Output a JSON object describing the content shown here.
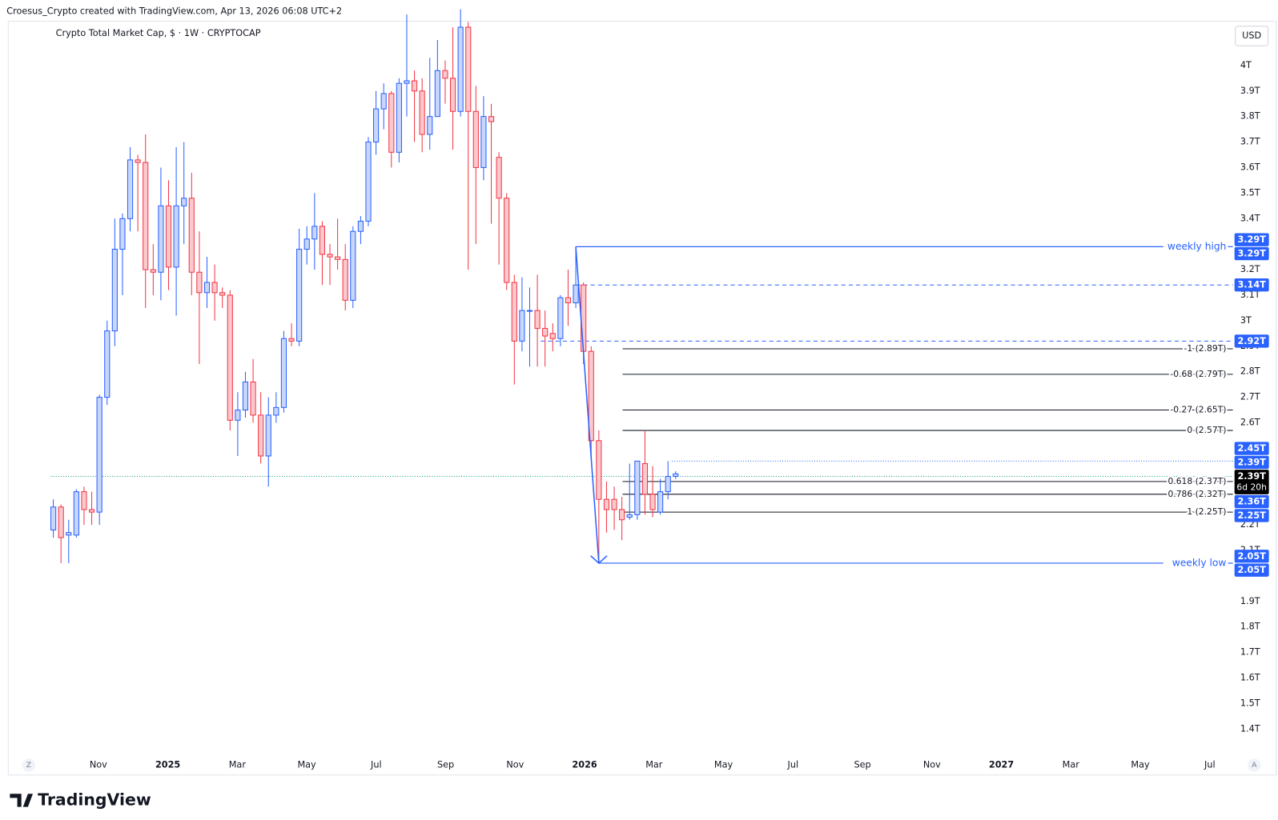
{
  "header": {
    "credit": "Croesus_Crypto created with TradingView.com, Apr 13, 2026 06:08 UTC+2",
    "currency": "USD",
    "footer_logo": "TradingView",
    "corner_left": "Z",
    "corner_right": "A"
  },
  "chart_data": {
    "type": "candlestick",
    "title": "Crypto Total Market Cap, $ · 1W · CRYPTOCAP",
    "up_color": "#2962ff",
    "down_color": "#f23645",
    "open": [
      2.18,
      2.27,
      2.16,
      2.16,
      2.33,
      2.26,
      2.25,
      2.7,
      2.96,
      3.28,
      3.4,
      3.63,
      3.62,
      3.2,
      3.19,
      3.45,
      3.21,
      3.45,
      3.48,
      3.19,
      3.11,
      3.15,
      3.11,
      3.1,
      2.61,
      2.65,
      2.76,
      2.63,
      2.47,
      2.63,
      2.66,
      2.93,
      2.92,
      3.28,
      3.32,
      3.37,
      3.26,
      3.25,
      3.24,
      3.08,
      3.35,
      3.39,
      3.7,
      3.83,
      3.89,
      3.66,
      3.93,
      3.94,
      3.9,
      3.73,
      3.8,
      3.98,
      3.95,
      3.82,
      4.15,
      3.82,
      3.6,
      3.8,
      3.64,
      3.48,
      3.15,
      2.92,
      3.04,
      3.04,
      2.97,
      2.95,
      2.93,
      3.09,
      3.07,
      3.14,
      2.88,
      2.53,
      2.3,
      2.3,
      2.26,
      2.23,
      2.24,
      2.44,
      2.32,
      2.25,
      2.33,
      2.39
    ],
    "high": [
      2.3,
      2.28,
      2.22,
      2.34,
      2.35,
      2.33,
      2.71,
      3.0,
      3.4,
      3.42,
      3.68,
      3.65,
      3.73,
      3.3,
      3.6,
      3.55,
      3.68,
      3.7,
      3.58,
      3.35,
      3.25,
      3.22,
      3.13,
      3.12,
      2.72,
      2.8,
      2.85,
      2.72,
      2.7,
      2.72,
      2.96,
      2.99,
      3.36,
      3.37,
      3.5,
      3.39,
      3.3,
      3.4,
      3.3,
      3.37,
      3.41,
      3.72,
      3.9,
      3.93,
      3.9,
      3.95,
      4.2,
      3.98,
      3.95,
      4.03,
      4.1,
      4.02,
      4.15,
      4.22,
      4.17,
      3.92,
      3.88,
      3.85,
      3.66,
      3.5,
      3.18,
      3.17,
      3.13,
      3.18,
      3.04,
      2.99,
      3.1,
      3.2,
      3.29,
      3.15,
      2.9,
      2.57,
      2.37,
      2.35,
      2.31,
      2.44,
      2.45,
      2.57,
      2.43,
      2.38,
      2.45,
      2.41
    ],
    "low": [
      2.15,
      2.05,
      2.05,
      2.15,
      2.2,
      2.2,
      2.2,
      2.67,
      2.9,
      3.1,
      3.35,
      3.35,
      3.05,
      3.1,
      3.08,
      3.12,
      3.02,
      3.3,
      3.1,
      2.83,
      3.05,
      3.0,
      3.05,
      2.57,
      2.47,
      2.62,
      2.6,
      2.44,
      2.35,
      2.6,
      2.64,
      2.9,
      2.9,
      3.22,
      3.2,
      3.14,
      3.14,
      3.2,
      3.04,
      3.05,
      3.3,
      3.37,
      3.65,
      3.75,
      3.6,
      3.62,
      3.8,
      3.7,
      3.66,
      3.67,
      3.8,
      3.85,
      3.67,
      3.8,
      3.2,
      3.3,
      3.55,
      3.38,
      3.22,
      3.12,
      2.75,
      2.88,
      2.82,
      2.82,
      2.82,
      2.88,
      2.9,
      2.98,
      3.05,
      2.83,
      2.46,
      2.05,
      2.17,
      2.18,
      2.14,
      2.22,
      2.22,
      2.24,
      2.23,
      2.24,
      2.3,
      2.38
    ],
    "close": [
      2.27,
      2.15,
      2.17,
      2.33,
      2.26,
      2.25,
      2.7,
      2.96,
      3.28,
      3.4,
      3.63,
      3.62,
      3.2,
      3.19,
      3.45,
      3.21,
      3.45,
      3.48,
      3.19,
      3.11,
      3.15,
      3.11,
      3.1,
      2.61,
      2.65,
      2.76,
      2.63,
      2.47,
      2.63,
      2.66,
      2.93,
      2.92,
      3.28,
      3.32,
      3.37,
      3.26,
      3.25,
      3.24,
      3.08,
      3.35,
      3.39,
      3.7,
      3.83,
      3.89,
      3.66,
      3.93,
      3.94,
      3.9,
      3.73,
      3.8,
      3.98,
      3.95,
      3.82,
      4.15,
      3.82,
      3.6,
      3.8,
      3.78,
      3.48,
      3.15,
      2.92,
      3.04,
      3.04,
      2.97,
      2.94,
      2.93,
      3.09,
      3.07,
      3.14,
      2.88,
      2.53,
      2.3,
      2.26,
      2.26,
      2.22,
      2.24,
      2.45,
      2.32,
      2.26,
      2.33,
      2.39,
      2.4
    ],
    "xticks": [
      "Nov",
      "2025",
      "Mar",
      "May",
      "Jul",
      "Sep",
      "Nov",
      "2026",
      "Mar",
      "May",
      "Jul",
      "Sep",
      "Nov",
      "2027",
      "Mar",
      "May",
      "Jul"
    ],
    "ylim": [
      1.22,
      4.17
    ],
    "yticks": [
      {
        "value": 1.4,
        "label": "1.4T"
      },
      {
        "value": 1.5,
        "label": "1.5T"
      },
      {
        "value": 1.6,
        "label": "1.6T"
      },
      {
        "value": 1.7,
        "label": "1.7T"
      },
      {
        "value": 1.8,
        "label": "1.8T"
      },
      {
        "value": 1.9,
        "label": "1.9T"
      },
      {
        "value": 2.1,
        "label": "2.1T"
      },
      {
        "value": 2.2,
        "label": "2.2T"
      },
      {
        "value": 2.6,
        "label": "2.6T"
      },
      {
        "value": 2.7,
        "label": "2.7T"
      },
      {
        "value": 2.8,
        "label": "2.8T"
      },
      {
        "value": 2.9,
        "label": "2.9T"
      },
      {
        "value": 3,
        "label": "3T"
      },
      {
        "value": 3.1,
        "label": "3.1T"
      },
      {
        "value": 3.2,
        "label": "3.2T"
      },
      {
        "value": 3.4,
        "label": "3.4T"
      },
      {
        "value": 3.5,
        "label": "3.5T"
      },
      {
        "value": 3.6,
        "label": "3.6T"
      },
      {
        "value": 3.7,
        "label": "3.7T"
      },
      {
        "value": 3.8,
        "label": "3.8T"
      },
      {
        "value": 3.9,
        "label": "3.9T"
      },
      {
        "value": 4,
        "label": "4T"
      }
    ],
    "fib_levels": [
      {
        "label": "-1 (2.89T)",
        "value": 2.89
      },
      {
        "label": "-0.68 (2.79T)",
        "value": 2.79
      },
      {
        "label": "-0.27 (2.65T)",
        "value": 2.65
      },
      {
        "label": "0 (2.57T)",
        "value": 2.57
      },
      {
        "label": "0.618 (2.37T)",
        "value": 2.37
      },
      {
        "label": "0.786 (2.32T)",
        "value": 2.32
      },
      {
        "label": "1 (2.25T)",
        "value": 2.25
      }
    ],
    "annotations": [
      {
        "label": "weekly high",
        "value": 3.29
      },
      {
        "label": "weekly low",
        "value": 2.05
      }
    ],
    "price_badges": [
      {
        "label": "3.29T",
        "value": 3.29,
        "color": "#2962ff"
      },
      {
        "label": "3.29T",
        "value": 3.29,
        "color": "#2962ff"
      },
      {
        "label": "3.14T",
        "value": 3.14,
        "color": "#2962ff",
        "line": "dashed"
      },
      {
        "label": "2.92T",
        "value": 2.92,
        "color": "#2962ff",
        "line": "dashed"
      },
      {
        "label": "2.45T",
        "value": 2.45,
        "color": "#2962ff",
        "line": "dotted"
      },
      {
        "label": "2.39T",
        "value": 2.39,
        "color": "#2962ff"
      },
      {
        "label": "2.39T",
        "value": 2.39,
        "color": "#000000",
        "countdown": "6d 20h",
        "line": "price"
      },
      {
        "label": "2.36T",
        "value": 2.36,
        "color": "#2962ff"
      },
      {
        "label": "2.25T",
        "value": 2.25,
        "color": "#2962ff"
      },
      {
        "label": "2.05T",
        "value": 2.05,
        "color": "#2962ff"
      },
      {
        "label": "2.05T",
        "value": 2.05,
        "color": "#2962ff"
      }
    ]
  }
}
